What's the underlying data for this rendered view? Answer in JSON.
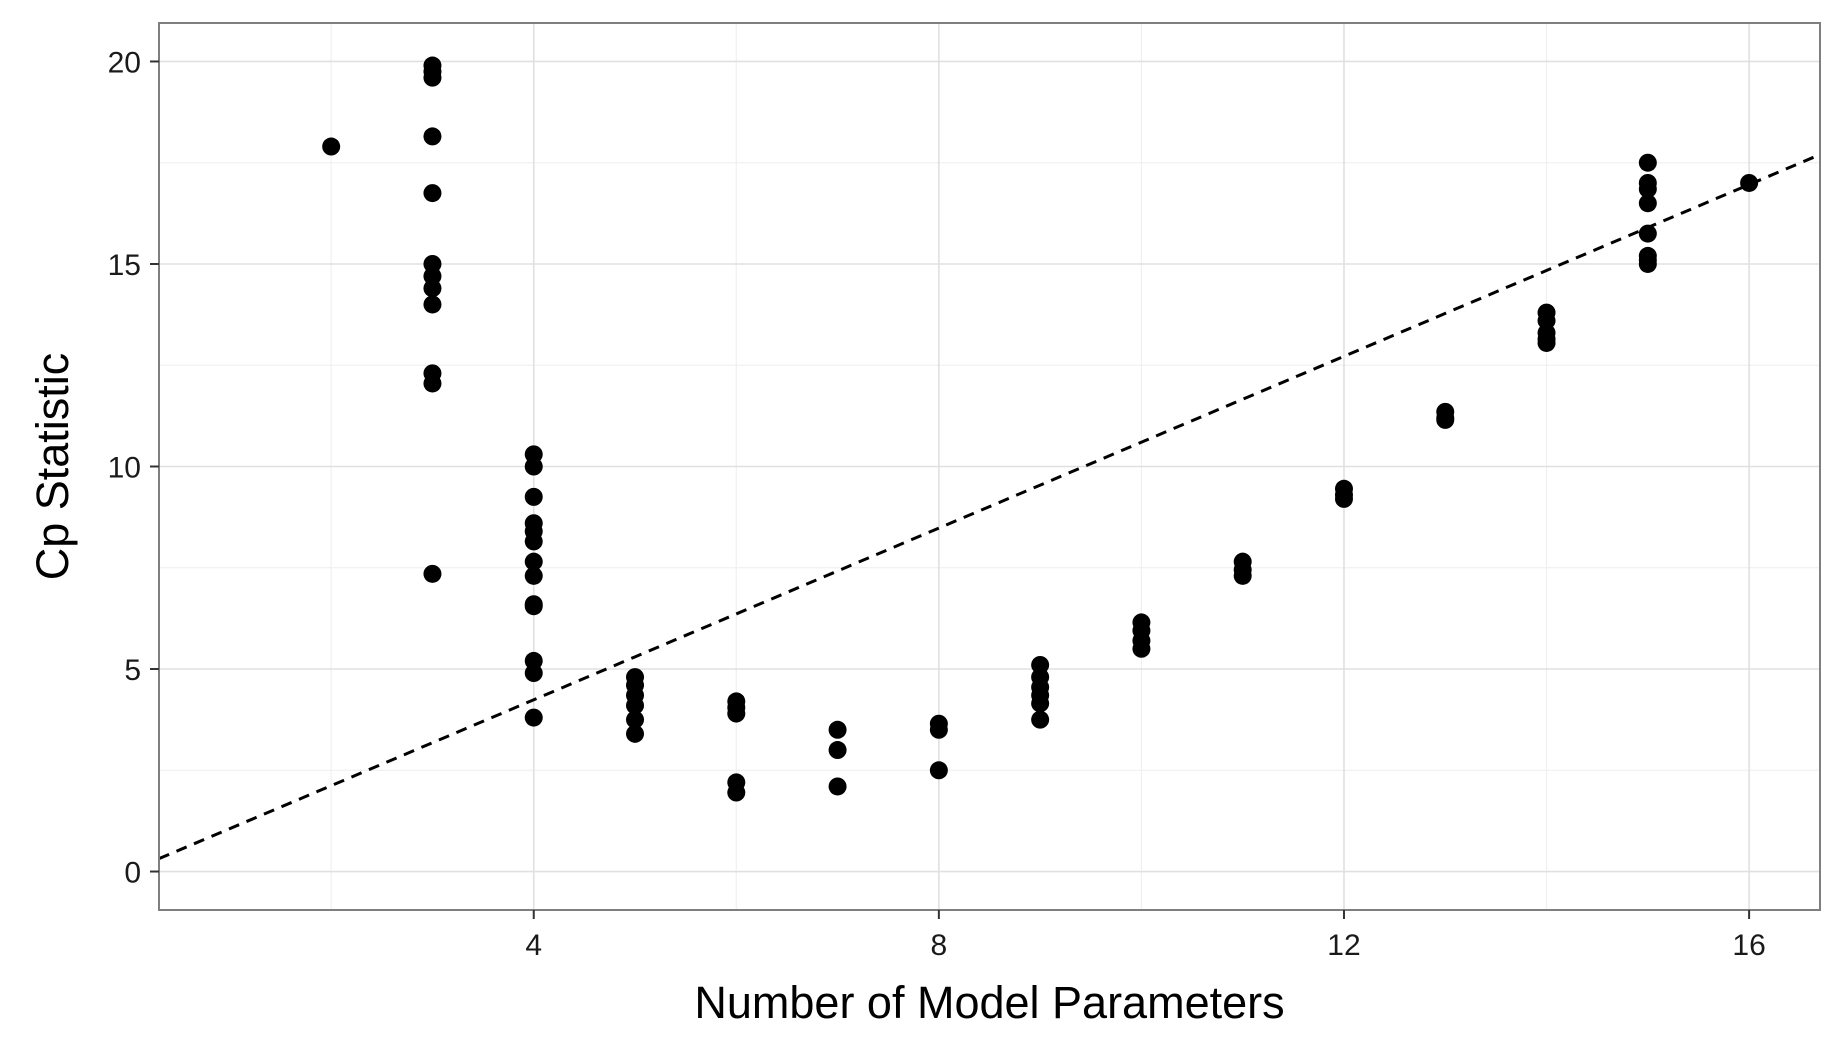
{
  "chart_data": {
    "type": "scatter",
    "title": "",
    "xlabel": "Number of Model Parameters",
    "ylabel": "Cp Statistic",
    "xlim": [
      0.3,
      16.7
    ],
    "ylim": [
      -0.95,
      20.95
    ],
    "x_ticks": [
      4,
      8,
      12,
      16
    ],
    "x_tick_labels": [
      "4",
      "8",
      "12",
      "16"
    ],
    "y_ticks": [
      0,
      5,
      10,
      15,
      20
    ],
    "y_tick_labels": [
      "0",
      "5",
      "10",
      "15",
      "20"
    ],
    "grid": true,
    "legend": "none",
    "series": [
      {
        "points": [
          [
            2,
            17.9
          ],
          [
            3,
            19.9
          ],
          [
            3,
            19.75
          ],
          [
            3,
            19.6
          ],
          [
            3,
            18.15
          ],
          [
            3,
            16.75
          ],
          [
            3,
            15.0
          ],
          [
            3,
            14.7
          ],
          [
            3,
            14.4
          ],
          [
            3,
            14.0
          ],
          [
            3,
            12.3
          ],
          [
            3,
            12.05
          ],
          [
            3,
            7.35
          ],
          [
            4,
            10.3
          ],
          [
            4,
            10.0
          ],
          [
            4,
            9.25
          ],
          [
            4,
            8.6
          ],
          [
            4,
            8.4
          ],
          [
            4,
            8.15
          ],
          [
            4,
            7.65
          ],
          [
            4,
            7.3
          ],
          [
            4,
            6.6
          ],
          [
            4,
            6.55
          ],
          [
            4,
            5.2
          ],
          [
            4,
            4.9
          ],
          [
            4,
            3.8
          ],
          [
            5,
            4.8
          ],
          [
            5,
            4.6
          ],
          [
            5,
            4.35
          ],
          [
            5,
            4.1
          ],
          [
            5,
            3.75
          ],
          [
            5,
            3.4
          ],
          [
            6,
            4.2
          ],
          [
            6,
            4.05
          ],
          [
            6,
            3.9
          ],
          [
            6,
            2.2
          ],
          [
            6,
            1.95
          ],
          [
            7,
            3.5
          ],
          [
            7,
            3.0
          ],
          [
            7,
            2.1
          ],
          [
            8,
            3.65
          ],
          [
            8,
            3.5
          ],
          [
            8,
            2.5
          ],
          [
            9,
            5.1
          ],
          [
            9,
            4.8
          ],
          [
            9,
            4.55
          ],
          [
            9,
            4.35
          ],
          [
            9,
            4.15
          ],
          [
            9,
            3.75
          ],
          [
            10,
            6.15
          ],
          [
            10,
            5.95
          ],
          [
            10,
            5.7
          ],
          [
            10,
            5.5
          ],
          [
            11,
            7.65
          ],
          [
            11,
            7.45
          ],
          [
            11,
            7.3
          ],
          [
            12,
            9.45
          ],
          [
            12,
            9.3
          ],
          [
            12,
            9.2
          ],
          [
            13,
            11.35
          ],
          [
            13,
            11.2
          ],
          [
            13,
            11.15
          ],
          [
            14,
            13.8
          ],
          [
            14,
            13.6
          ],
          [
            14,
            13.3
          ],
          [
            14,
            13.15
          ],
          [
            14,
            13.05
          ],
          [
            15,
            17.5
          ],
          [
            15,
            17.0
          ],
          [
            15,
            16.85
          ],
          [
            15,
            16.5
          ],
          [
            15,
            15.75
          ],
          [
            15,
            15.2
          ],
          [
            15,
            15.1
          ],
          [
            15,
            15.0
          ],
          [
            16,
            17.0
          ]
        ],
        "color": "#000000"
      }
    ],
    "reference_line": {
      "style": "dashed",
      "color": "#000000",
      "intercept": 0,
      "slope": 1.06
    },
    "background_color": "#ffffff",
    "grid_major_color": "#e0e0e0",
    "grid_minor_color": "#f0f0f0",
    "panel_border_color": "#7f7f7f"
  }
}
